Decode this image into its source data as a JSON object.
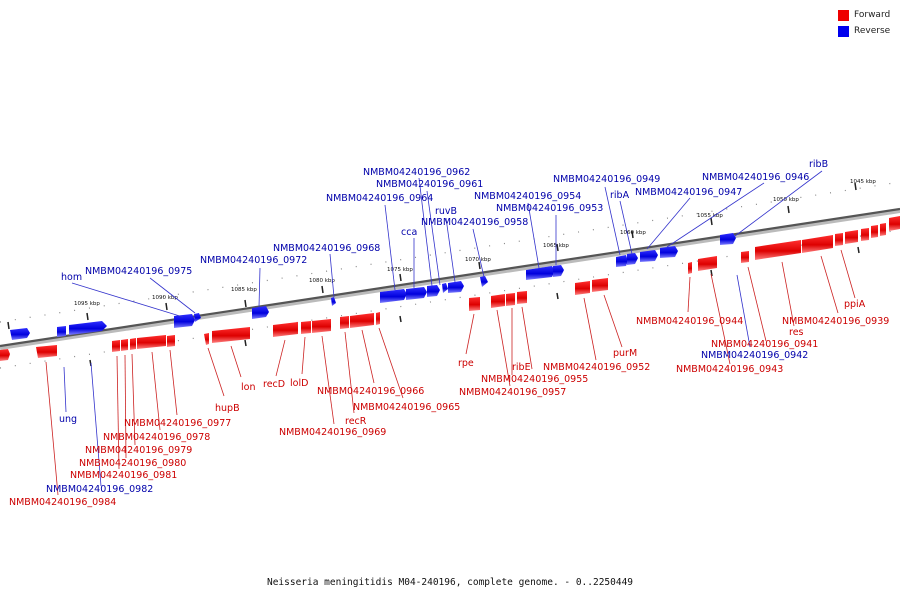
{
  "legend": [
    {
      "label": "Forward",
      "color": "#ee0000"
    },
    {
      "label": "Reverse",
      "color": "#0000ee"
    }
  ],
  "caption": "Neisseria meningitidis M04-240196, complete genome. - 0..2250449",
  "colors": {
    "forward": "#ee0000",
    "reverse": "#0000ee",
    "forward_label": "#cc0000",
    "reverse_label": "#0000aa",
    "backbone": "#666666"
  },
  "scale_labels": [
    "1045 kbp",
    "1050 kbp",
    "1055 kbp",
    "1060 kbp",
    "1065 kbp",
    "1070 kbp",
    "1075 kbp",
    "1080 kbp",
    "1085 kbp",
    "1090 kbp",
    "1095 kbp"
  ],
  "reverse_genes": [
    "ribB",
    "NMBM04240196_0946",
    "NMBM04240196_0947",
    "ribA",
    "NMBM04240196_0949",
    "NMBM04240196_0953",
    "NMBM04240196_0954",
    "NMBM04240196_0958",
    "ruvB",
    "NMBM04240196_0961",
    "NMBM04240196_0962",
    "NMBM04240196_0964",
    "cca",
    "NMBM04240196_0968",
    "NMBM04240196_0972",
    "NMBM04240196_0975",
    "hom",
    "ung",
    "NMBM04240196_0982",
    "NMBM04240196_0942"
  ],
  "forward_genes": [
    "ppiA",
    "NMBM04240196_0939",
    "res",
    "NMBM04240196_0941",
    "NMBM04240196_0943",
    "NMBM04240196_0944",
    "purM",
    "NMBM04240196_0952",
    "ribE",
    "NMBM04240196_0955",
    "NMBM04240196_0957",
    "rpe",
    "NMBM04240196_0965",
    "NMBM04240196_0966",
    "recR",
    "NMBM04240196_0969",
    "lolD",
    "recD",
    "lon",
    "hupB",
    "NMBM04240196_0977",
    "NMBM04240196_0978",
    "NMBM04240196_0979",
    "NMBM04240196_0980",
    "NMBM04240196_0981",
    "NMBM04240196_0984"
  ]
}
